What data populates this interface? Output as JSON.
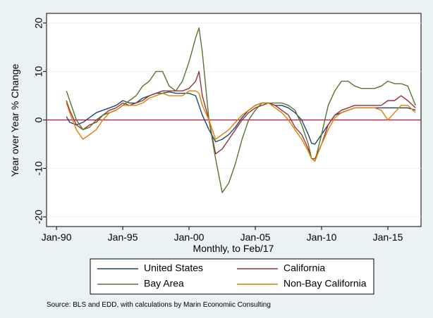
{
  "chart_data": {
    "type": "line",
    "y_label": "Year over Year % Change",
    "x_label": "Monthly, to Feb/17",
    "source": "Source: BLS and EDD, with calculations by Marin Economiic Consulting",
    "x": [
      "1990-10",
      "1991-01",
      "1991-07",
      "1992-01",
      "1992-07",
      "1993-01",
      "1993-07",
      "1994-01",
      "1994-07",
      "1995-01",
      "1995-07",
      "1996-01",
      "1996-07",
      "1997-01",
      "1997-07",
      "1998-01",
      "1998-07",
      "1999-01",
      "1999-07",
      "2000-01",
      "2000-07",
      "2000-10",
      "2001-01",
      "2001-07",
      "2002-01",
      "2002-07",
      "2003-01",
      "2003-07",
      "2004-01",
      "2004-07",
      "2005-01",
      "2005-07",
      "2006-01",
      "2006-07",
      "2007-01",
      "2007-07",
      "2008-01",
      "2008-07",
      "2009-01",
      "2009-04",
      "2009-07",
      "2010-01",
      "2010-07",
      "2011-01",
      "2011-07",
      "2012-01",
      "2012-07",
      "2013-01",
      "2013-07",
      "2014-01",
      "2014-07",
      "2015-01",
      "2015-07",
      "2016-01",
      "2016-07",
      "2017-02"
    ],
    "series": [
      {
        "name": "United States",
        "color": "#1a476f",
        "values": [
          0.7,
          -0.5,
          -1,
          -0.5,
          0.5,
          1.5,
          2,
          2.5,
          3,
          4,
          3.5,
          3.5,
          4.5,
          5,
          5.5,
          5.5,
          5.8,
          5.5,
          5.5,
          5.5,
          5,
          3,
          1,
          -2,
          -4.5,
          -4,
          -3,
          -1.5,
          0.5,
          2,
          3,
          3.5,
          3.5,
          3,
          3,
          2.5,
          1.5,
          0,
          -3,
          -4.8,
          -5,
          -3,
          -1,
          1,
          1.5,
          2,
          2.5,
          2.5,
          2.5,
          2.5,
          2.5,
          2.5,
          2.5,
          2.5,
          2.5,
          2
        ]
      },
      {
        "name": "California",
        "color": "#90353b",
        "values": [
          4,
          2,
          -1,
          -2,
          -1,
          -0.5,
          1,
          2,
          2.5,
          3.5,
          3,
          3.5,
          4,
          5,
          5.5,
          6,
          6,
          6,
          6,
          6.5,
          8,
          10,
          5,
          0,
          -7,
          -6,
          -4,
          -2,
          0,
          1.5,
          2.5,
          3,
          3.5,
          3,
          2,
          1,
          -1.5,
          -3,
          -6,
          -8,
          -8,
          -5,
          -1,
          1,
          2,
          2.5,
          3,
          3,
          3,
          3,
          3,
          4,
          4,
          5,
          4,
          2.5
        ]
      },
      {
        "name": "Bay Area",
        "color": "#55752f",
        "values": [
          6,
          4,
          0,
          -2,
          -1.5,
          0,
          1,
          1.5,
          2,
          3,
          4,
          5,
          7,
          8,
          10,
          10,
          7,
          6,
          8,
          12,
          17,
          19,
          14,
          0,
          -8,
          -15,
          -13,
          -9,
          -4,
          0,
          2,
          3.5,
          3.5,
          3.5,
          3.5,
          3,
          2,
          -1,
          -5,
          -8,
          -8.5,
          -3,
          3,
          6,
          8,
          8,
          7,
          6.5,
          6.5,
          6.5,
          7,
          8,
          7.5,
          7.5,
          7,
          3
        ]
      },
      {
        "name": "Non-Bay California",
        "color": "#e37e00",
        "values": [
          3.5,
          1.5,
          -2,
          -4,
          -3,
          -2,
          0,
          1.5,
          2,
          3,
          3,
          3,
          3.5,
          4.5,
          5,
          5.5,
          5,
          5,
          5,
          6,
          6,
          5.5,
          3,
          0,
          -4,
          -3,
          -2,
          -0.5,
          1,
          2,
          3,
          3.5,
          3.5,
          2.5,
          1.5,
          0,
          -2,
          -4,
          -6.5,
          -8,
          -8.5,
          -5,
          -2,
          0.5,
          1.5,
          2,
          2.5,
          2.5,
          2.5,
          2.5,
          2,
          0,
          1.5,
          3,
          3,
          1.5
        ]
      }
    ],
    "xlim": [
      "1989-04",
      "2017-07"
    ],
    "xticks": [
      {
        "value": "1990-01",
        "label": "Jan-90"
      },
      {
        "value": "1995-01",
        "label": "Jan-95"
      },
      {
        "value": "2000-01",
        "label": "Jan-00"
      },
      {
        "value": "2005-01",
        "label": "Jan-05"
      },
      {
        "value": "2010-01",
        "label": "Jan-10"
      },
      {
        "value": "2015-01",
        "label": "Jan-15"
      }
    ],
    "ylim": [
      -22,
      22
    ],
    "yticks": [
      -20,
      -10,
      0,
      10,
      20
    ],
    "grid": true,
    "yline": 0,
    "yline_color": "#c10534",
    "legend": "bottom"
  }
}
